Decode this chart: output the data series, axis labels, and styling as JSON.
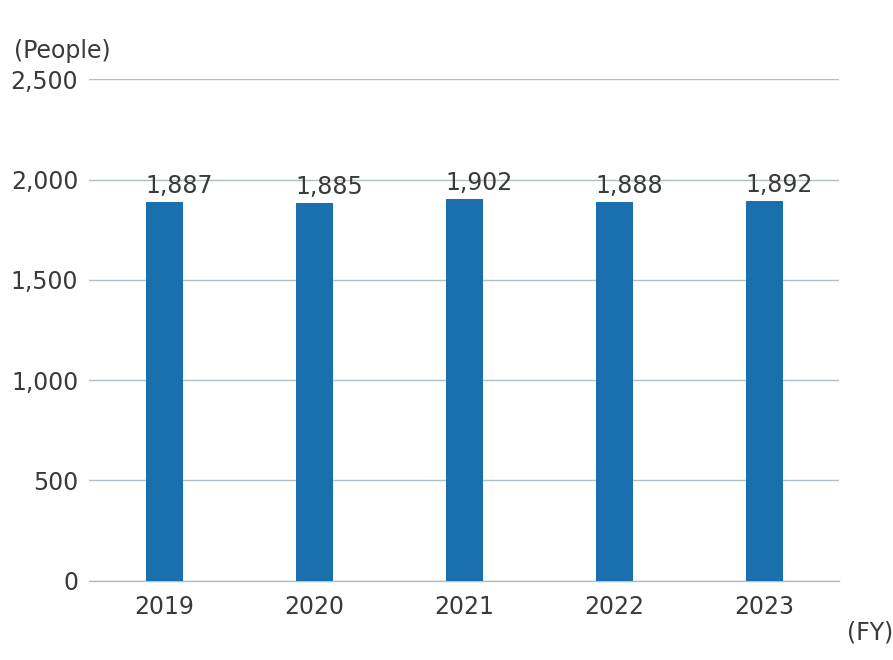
{
  "years": [
    "2019",
    "2020",
    "2021",
    "2022",
    "2023"
  ],
  "values": [
    1887,
    1885,
    1902,
    1888,
    1892
  ],
  "bar_color": "#1a6faf",
  "bar_width": 0.25,
  "ylim": [
    0,
    2500
  ],
  "yticks": [
    0,
    500,
    1000,
    1500,
    2000,
    2500
  ],
  "ylabel": "(People)",
  "xlabel": "(FY)",
  "background_color": "#ffffff",
  "value_labels": [
    "1,887",
    "1,885",
    "1,902",
    "1,888",
    "1,892"
  ],
  "tick_fontsize": 17,
  "label_fontsize": 17,
  "value_label_fontsize": 17,
  "grid_color": "#b0bec5",
  "grid_linewidth": 1.0
}
